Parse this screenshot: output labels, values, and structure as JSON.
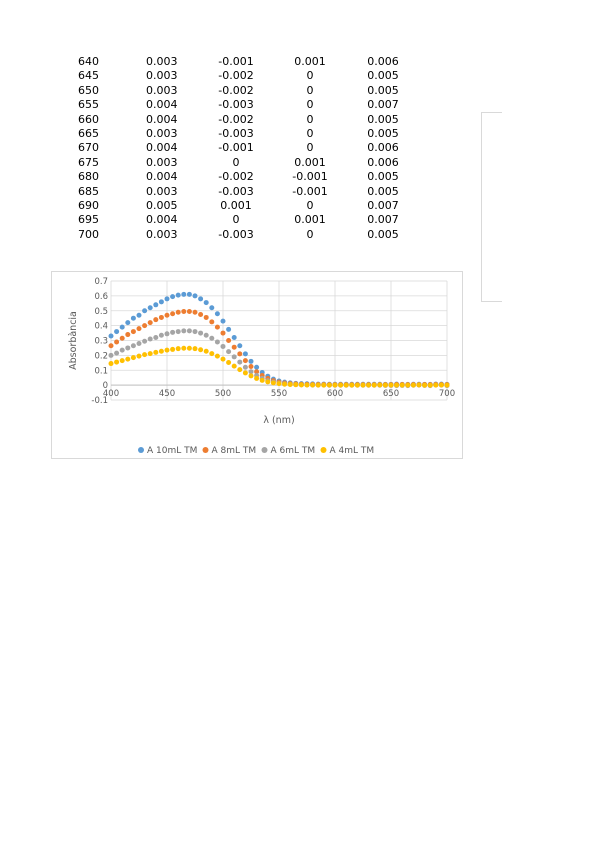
{
  "table": {
    "rows": [
      [
        "640",
        "0.003",
        "-0.001",
        "0.001",
        "0.006"
      ],
      [
        "645",
        "0.003",
        "-0.002",
        "0",
        "0.005"
      ],
      [
        "650",
        "0.003",
        "-0.002",
        "0",
        "0.005"
      ],
      [
        "655",
        "0.004",
        "-0.003",
        "0",
        "0.007"
      ],
      [
        "660",
        "0.004",
        "-0.002",
        "0",
        "0.005"
      ],
      [
        "665",
        "0.003",
        "-0.003",
        "0",
        "0.005"
      ],
      [
        "670",
        "0.004",
        "-0.001",
        "0",
        "0.006"
      ],
      [
        "675",
        "0.003",
        "0",
        "0.001",
        "0.006"
      ],
      [
        "680",
        "0.004",
        "-0.002",
        "-0.001",
        "0.005"
      ],
      [
        "685",
        "0.003",
        "-0.003",
        "-0.001",
        "0.005"
      ],
      [
        "690",
        "0.005",
        "0.001",
        "0",
        "0.007"
      ],
      [
        "695",
        "0.004",
        "0",
        "0.001",
        "0.007"
      ],
      [
        "700",
        "0.003",
        "-0.003",
        "0",
        "0.005"
      ]
    ]
  },
  "chart_data": {
    "type": "scatter",
    "xlabel": "λ (nm)",
    "ylabel": "Absorbància",
    "xlim": [
      400,
      700
    ],
    "ylim": [
      -0.1,
      0.7
    ],
    "x_ticks": [
      "400",
      "450",
      "500",
      "550",
      "600",
      "650",
      "700"
    ],
    "y_ticks": [
      "-0.1",
      "0",
      "0.1",
      "0.2",
      "0.3",
      "0.4",
      "0.5",
      "0.6",
      "0.7"
    ],
    "grid": true,
    "legend_position": "bottom",
    "x": [
      400,
      405,
      410,
      415,
      420,
      425,
      430,
      435,
      440,
      445,
      450,
      455,
      460,
      465,
      470,
      475,
      480,
      485,
      490,
      495,
      500,
      505,
      510,
      515,
      520,
      525,
      530,
      535,
      540,
      545,
      550,
      555,
      560,
      565,
      570,
      575,
      580,
      585,
      590,
      595,
      600,
      605,
      610,
      615,
      620,
      625,
      630,
      635,
      640,
      645,
      650,
      655,
      660,
      665,
      670,
      675,
      680,
      685,
      690,
      695,
      700
    ],
    "series": [
      {
        "name": "A 10mL TM",
        "color": "#5B9BD5",
        "values": [
          0.33,
          0.36,
          0.39,
          0.42,
          0.45,
          0.47,
          0.5,
          0.52,
          0.54,
          0.56,
          0.58,
          0.595,
          0.605,
          0.61,
          0.61,
          0.6,
          0.58,
          0.555,
          0.52,
          0.48,
          0.43,
          0.375,
          0.32,
          0.265,
          0.21,
          0.16,
          0.12,
          0.085,
          0.06,
          0.04,
          0.028,
          0.02,
          0.015,
          0.012,
          0.01,
          0.009,
          0.008,
          0.007,
          0.007,
          0.006,
          0.006,
          0.006,
          0.006,
          0.006,
          0.006,
          0.006,
          0.006,
          0.006,
          0.006,
          0.005,
          0.005,
          0.007,
          0.005,
          0.005,
          0.006,
          0.006,
          0.005,
          0.005,
          0.007,
          0.007,
          0.005
        ]
      },
      {
        "name": "A 8mL TM",
        "color": "#ED7D31",
        "values": [
          0.265,
          0.29,
          0.315,
          0.34,
          0.36,
          0.38,
          0.4,
          0.42,
          0.44,
          0.455,
          0.47,
          0.48,
          0.49,
          0.495,
          0.495,
          0.49,
          0.475,
          0.455,
          0.425,
          0.39,
          0.35,
          0.3,
          0.255,
          0.21,
          0.165,
          0.125,
          0.09,
          0.065,
          0.045,
          0.03,
          0.02,
          0.014,
          0.01,
          0.008,
          0.006,
          0.005,
          0.004,
          0.004,
          0.004,
          0.003,
          0.003,
          0.003,
          0.003,
          0.003,
          0.003,
          0.003,
          0.003,
          0.003,
          0.003,
          0.003,
          0.003,
          0.004,
          0.004,
          0.003,
          0.004,
          0.003,
          0.004,
          0.003,
          0.005,
          0.004,
          0.003
        ]
      },
      {
        "name": "A 6mL TM",
        "color": "#A5A5A5",
        "values": [
          0.2,
          0.215,
          0.235,
          0.25,
          0.265,
          0.28,
          0.295,
          0.31,
          0.32,
          0.335,
          0.345,
          0.355,
          0.36,
          0.365,
          0.365,
          0.36,
          0.35,
          0.335,
          0.315,
          0.29,
          0.26,
          0.225,
          0.19,
          0.155,
          0.12,
          0.09,
          0.065,
          0.045,
          0.03,
          0.02,
          0.013,
          0.008,
          0.005,
          0.003,
          0.002,
          0.001,
          0,
          0,
          0,
          -0.001,
          -0.001,
          -0.001,
          -0.001,
          -0.001,
          -0.001,
          -0.001,
          -0.001,
          -0.001,
          -0.001,
          -0.002,
          -0.002,
          -0.003,
          -0.002,
          -0.003,
          -0.001,
          0,
          -0.002,
          -0.003,
          0.001,
          0,
          -0.003
        ]
      },
      {
        "name": "A 4mL TM",
        "color": "#FFC000",
        "values": [
          0.145,
          0.155,
          0.165,
          0.175,
          0.185,
          0.195,
          0.205,
          0.212,
          0.22,
          0.228,
          0.235,
          0.24,
          0.245,
          0.248,
          0.248,
          0.245,
          0.238,
          0.228,
          0.212,
          0.195,
          0.175,
          0.152,
          0.128,
          0.104,
          0.082,
          0.062,
          0.045,
          0.032,
          0.022,
          0.015,
          0.01,
          0.006,
          0.004,
          0.003,
          0.002,
          0.001,
          0.001,
          0,
          0,
          0,
          0,
          0,
          0,
          0,
          0,
          0,
          0,
          0,
          0.001,
          0,
          0,
          0,
          0,
          0,
          0,
          0.001,
          -0.001,
          -0.001,
          0,
          0.001,
          0
        ]
      }
    ]
  }
}
